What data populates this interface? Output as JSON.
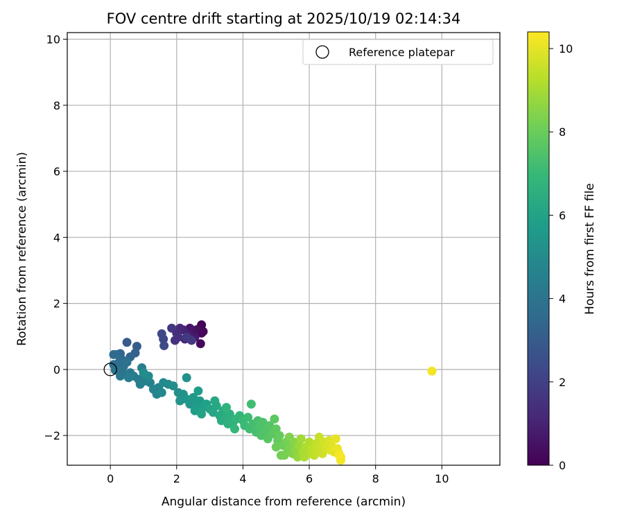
{
  "chart_data": {
    "type": "scatter",
    "title": "FOV centre drift starting at 2025/10/19 02:14:34",
    "xlabel": "Angular distance from reference (arcmin)",
    "ylabel": "Rotation from reference (arcmin)",
    "xlim": [
      -1.3,
      11.75
    ],
    "ylim": [
      -2.9,
      10.2
    ],
    "x_ticks": [
      0,
      2,
      4,
      6,
      8,
      10
    ],
    "y_ticks": [
      -2,
      0,
      2,
      4,
      6,
      8,
      10
    ],
    "y_tick_labels": [
      "−2",
      "0",
      "2",
      "4",
      "6",
      "8",
      "10"
    ],
    "grid": true,
    "legend": {
      "position": "top-right",
      "entries": [
        "Reference platepar"
      ]
    },
    "reference_point": {
      "x": 0,
      "y": 0,
      "label": "Reference platepar"
    },
    "colorbar": {
      "label": "Hours from first FF file",
      "range": [
        0,
        10.4
      ],
      "ticks": [
        0,
        2,
        4,
        6,
        8,
        10
      ],
      "colormap": [
        "#440154",
        "#482878",
        "#3e4989",
        "#31688e",
        "#26828e",
        "#1f9e89",
        "#35b779",
        "#6ece58",
        "#b5de2b",
        "#fde725"
      ]
    },
    "points": [
      {
        "x": 2.75,
        "y": 1.35,
        "t": 0.05
      },
      {
        "x": 2.7,
        "y": 1.25,
        "t": 0.1
      },
      {
        "x": 2.75,
        "y": 1.1,
        "t": 0.15
      },
      {
        "x": 2.8,
        "y": 1.15,
        "t": 0.2
      },
      {
        "x": 2.72,
        "y": 0.78,
        "t": 0.25
      },
      {
        "x": 2.6,
        "y": 1.2,
        "t": 0.4
      },
      {
        "x": 2.5,
        "y": 1.1,
        "t": 0.5
      },
      {
        "x": 2.4,
        "y": 1.25,
        "t": 0.6
      },
      {
        "x": 2.55,
        "y": 0.98,
        "t": 0.7
      },
      {
        "x": 2.35,
        "y": 1.05,
        "t": 0.85
      },
      {
        "x": 2.2,
        "y": 1.2,
        "t": 1.0
      },
      {
        "x": 2.25,
        "y": 0.92,
        "t": 1.1
      },
      {
        "x": 2.1,
        "y": 1.25,
        "t": 1.2
      },
      {
        "x": 2.0,
        "y": 1.1,
        "t": 1.3
      },
      {
        "x": 2.05,
        "y": 0.98,
        "t": 1.4
      },
      {
        "x": 1.95,
        "y": 0.88,
        "t": 1.5
      },
      {
        "x": 1.85,
        "y": 1.25,
        "t": 1.65
      },
      {
        "x": 2.45,
        "y": 0.88,
        "t": 1.7
      },
      {
        "x": 2.3,
        "y": 0.98,
        "t": 1.8
      },
      {
        "x": 1.6,
        "y": 0.92,
        "t": 2.2
      },
      {
        "x": 1.55,
        "y": 1.08,
        "t": 2.3
      },
      {
        "x": 1.62,
        "y": 0.72,
        "t": 2.4
      },
      {
        "x": 0.5,
        "y": 0.82,
        "t": 3.0
      },
      {
        "x": 0.8,
        "y": 0.7,
        "t": 3.1
      },
      {
        "x": 0.75,
        "y": 0.5,
        "t": 3.2
      },
      {
        "x": 0.6,
        "y": 0.38,
        "t": 3.3
      },
      {
        "x": 0.3,
        "y": 0.48,
        "t": 3.4
      },
      {
        "x": 0.2,
        "y": 0.45,
        "t": 3.5
      },
      {
        "x": 0.1,
        "y": 0.45,
        "t": 3.6
      },
      {
        "x": 0.35,
        "y": 0.3,
        "t": 3.65
      },
      {
        "x": 0.25,
        "y": 0.2,
        "t": 3.7
      },
      {
        "x": 0.1,
        "y": 0.15,
        "t": 3.75
      },
      {
        "x": 0.2,
        "y": 0.05,
        "t": 3.8
      },
      {
        "x": 0.4,
        "y": 0.1,
        "t": 3.85
      },
      {
        "x": 0.5,
        "y": 0.22,
        "t": 3.9
      },
      {
        "x": 0.3,
        "y": -0.05,
        "t": 3.95
      },
      {
        "x": 0.15,
        "y": -0.02,
        "t": 4.0
      },
      {
        "x": 0.45,
        "y": -0.15,
        "t": 4.05
      },
      {
        "x": 0.3,
        "y": -0.2,
        "t": 4.1
      },
      {
        "x": 0.6,
        "y": -0.1,
        "t": 4.2
      },
      {
        "x": 0.7,
        "y": -0.2,
        "t": 4.3
      },
      {
        "x": 0.85,
        "y": -0.3,
        "t": 4.35
      },
      {
        "x": 0.95,
        "y": 0.05,
        "t": 4.4
      },
      {
        "x": 0.55,
        "y": -0.25,
        "t": 4.45
      },
      {
        "x": 0.9,
        "y": -0.45,
        "t": 4.5
      },
      {
        "x": 1.05,
        "y": -0.35,
        "t": 4.55
      },
      {
        "x": 1.2,
        "y": -0.4,
        "t": 4.6
      },
      {
        "x": 1.3,
        "y": -0.6,
        "t": 4.7
      },
      {
        "x": 1.45,
        "y": -0.55,
        "t": 4.75
      },
      {
        "x": 1.4,
        "y": -0.75,
        "t": 4.8
      },
      {
        "x": 1.55,
        "y": -0.7,
        "t": 4.85
      },
      {
        "x": 1.6,
        "y": -0.4,
        "t": 4.9
      },
      {
        "x": 1.75,
        "y": -0.45,
        "t": 4.95
      },
      {
        "x": 1.15,
        "y": -0.2,
        "t": 5.0
      },
      {
        "x": 1.0,
        "y": -0.1,
        "t": 5.05
      },
      {
        "x": 1.9,
        "y": -0.5,
        "t": 5.1
      },
      {
        "x": 2.05,
        "y": -0.7,
        "t": 5.2
      },
      {
        "x": 2.3,
        "y": -0.25,
        "t": 5.25
      },
      {
        "x": 2.2,
        "y": -0.75,
        "t": 5.3
      },
      {
        "x": 2.1,
        "y": -0.95,
        "t": 5.35
      },
      {
        "x": 2.3,
        "y": -0.9,
        "t": 5.4
      },
      {
        "x": 2.4,
        "y": -1.05,
        "t": 5.5
      },
      {
        "x": 2.5,
        "y": -0.85,
        "t": 5.55
      },
      {
        "x": 2.6,
        "y": -1.1,
        "t": 5.6
      },
      {
        "x": 2.7,
        "y": -0.95,
        "t": 5.7
      },
      {
        "x": 2.65,
        "y": -0.65,
        "t": 5.75
      },
      {
        "x": 2.55,
        "y": -1.25,
        "t": 5.8
      },
      {
        "x": 2.8,
        "y": -1.15,
        "t": 5.85
      },
      {
        "x": 2.9,
        "y": -1.05,
        "t": 5.9
      },
      {
        "x": 2.75,
        "y": -1.35,
        "t": 6.0
      },
      {
        "x": 3.0,
        "y": -1.2,
        "t": 6.1
      },
      {
        "x": 3.1,
        "y": -1.3,
        "t": 6.15
      },
      {
        "x": 3.2,
        "y": -1.1,
        "t": 6.2
      },
      {
        "x": 3.15,
        "y": -0.95,
        "t": 6.25
      },
      {
        "x": 3.3,
        "y": -1.4,
        "t": 6.3
      },
      {
        "x": 3.4,
        "y": -1.25,
        "t": 6.35
      },
      {
        "x": 3.35,
        "y": -1.55,
        "t": 6.4
      },
      {
        "x": 3.5,
        "y": -1.45,
        "t": 6.5
      },
      {
        "x": 3.6,
        "y": -1.35,
        "t": 6.55
      },
      {
        "x": 3.55,
        "y": -1.65,
        "t": 6.6
      },
      {
        "x": 3.7,
        "y": -1.6,
        "t": 6.7
      },
      {
        "x": 3.5,
        "y": -1.15,
        "t": 6.75
      },
      {
        "x": 3.8,
        "y": -1.5,
        "t": 6.8
      },
      {
        "x": 3.9,
        "y": -1.4,
        "t": 6.85
      },
      {
        "x": 3.75,
        "y": -1.8,
        "t": 6.9
      },
      {
        "x": 4.0,
        "y": -1.55,
        "t": 7.0
      },
      {
        "x": 4.05,
        "y": -1.7,
        "t": 7.05
      },
      {
        "x": 4.15,
        "y": -1.45,
        "t": 7.1
      },
      {
        "x": 4.2,
        "y": -1.8,
        "t": 7.15
      },
      {
        "x": 4.25,
        "y": -1.05,
        "t": 7.2
      },
      {
        "x": 4.3,
        "y": -1.65,
        "t": 7.25
      },
      {
        "x": 4.4,
        "y": -1.9,
        "t": 7.3
      },
      {
        "x": 4.45,
        "y": -1.55,
        "t": 7.35
      },
      {
        "x": 4.5,
        "y": -1.75,
        "t": 7.4
      },
      {
        "x": 4.6,
        "y": -1.6,
        "t": 7.45
      },
      {
        "x": 4.55,
        "y": -2.0,
        "t": 7.5
      },
      {
        "x": 4.7,
        "y": -1.85,
        "t": 7.55
      },
      {
        "x": 4.8,
        "y": -1.7,
        "t": 7.6
      },
      {
        "x": 4.75,
        "y": -2.1,
        "t": 7.65
      },
      {
        "x": 4.9,
        "y": -1.95,
        "t": 7.7
      },
      {
        "x": 4.95,
        "y": -1.5,
        "t": 7.75
      },
      {
        "x": 5.0,
        "y": -1.8,
        "t": 7.8
      },
      {
        "x": 5.05,
        "y": -2.15,
        "t": 7.85
      },
      {
        "x": 5.1,
        "y": -2.0,
        "t": 7.9
      },
      {
        "x": 5.0,
        "y": -2.35,
        "t": 8.0
      },
      {
        "x": 5.2,
        "y": -2.3,
        "t": 8.05
      },
      {
        "x": 5.15,
        "y": -2.6,
        "t": 8.1
      },
      {
        "x": 5.3,
        "y": -2.2,
        "t": 8.15
      },
      {
        "x": 5.35,
        "y": -2.45,
        "t": 8.2
      },
      {
        "x": 5.25,
        "y": -2.6,
        "t": 8.25
      },
      {
        "x": 5.45,
        "y": -2.35,
        "t": 8.3
      },
      {
        "x": 5.4,
        "y": -2.05,
        "t": 8.35
      },
      {
        "x": 5.5,
        "y": -2.55,
        "t": 8.4
      },
      {
        "x": 5.55,
        "y": -2.2,
        "t": 8.5
      },
      {
        "x": 5.6,
        "y": -2.45,
        "t": 8.6
      },
      {
        "x": 5.65,
        "y": -2.65,
        "t": 8.7
      },
      {
        "x": 5.7,
        "y": -2.3,
        "t": 8.8
      },
      {
        "x": 5.75,
        "y": -2.1,
        "t": 8.9
      },
      {
        "x": 5.8,
        "y": -2.5,
        "t": 9.0
      },
      {
        "x": 5.85,
        "y": -2.65,
        "t": 9.1
      },
      {
        "x": 5.9,
        "y": -2.35,
        "t": 9.15
      },
      {
        "x": 6.0,
        "y": -2.2,
        "t": 9.2
      },
      {
        "x": 6.05,
        "y": -2.55,
        "t": 9.3
      },
      {
        "x": 6.1,
        "y": -2.4,
        "t": 9.35
      },
      {
        "x": 6.15,
        "y": -2.6,
        "t": 9.4
      },
      {
        "x": 6.2,
        "y": -2.25,
        "t": 9.45
      },
      {
        "x": 6.25,
        "y": -2.45,
        "t": 9.5
      },
      {
        "x": 6.3,
        "y": -2.05,
        "t": 9.55
      },
      {
        "x": 6.35,
        "y": -2.35,
        "t": 9.6
      },
      {
        "x": 6.4,
        "y": -2.55,
        "t": 9.65
      },
      {
        "x": 6.45,
        "y": -2.2,
        "t": 9.7
      },
      {
        "x": 6.5,
        "y": -2.4,
        "t": 9.75
      },
      {
        "x": 6.55,
        "y": -2.3,
        "t": 9.8
      },
      {
        "x": 6.6,
        "y": -2.15,
        "t": 9.85
      },
      {
        "x": 6.65,
        "y": -2.45,
        "t": 9.9
      },
      {
        "x": 6.7,
        "y": -2.35,
        "t": 9.95
      },
      {
        "x": 6.75,
        "y": -2.5,
        "t": 10.0
      },
      {
        "x": 6.8,
        "y": -2.1,
        "t": 10.05
      },
      {
        "x": 6.85,
        "y": -2.4,
        "t": 10.1
      },
      {
        "x": 6.9,
        "y": -2.55,
        "t": 10.15
      },
      {
        "x": 6.95,
        "y": -2.65,
        "t": 10.2
      },
      {
        "x": 6.95,
        "y": -2.75,
        "t": 10.25
      },
      {
        "x": 6.9,
        "y": -2.6,
        "t": 10.3
      },
      {
        "x": 9.7,
        "y": -0.05,
        "t": 10.2
      }
    ]
  }
}
